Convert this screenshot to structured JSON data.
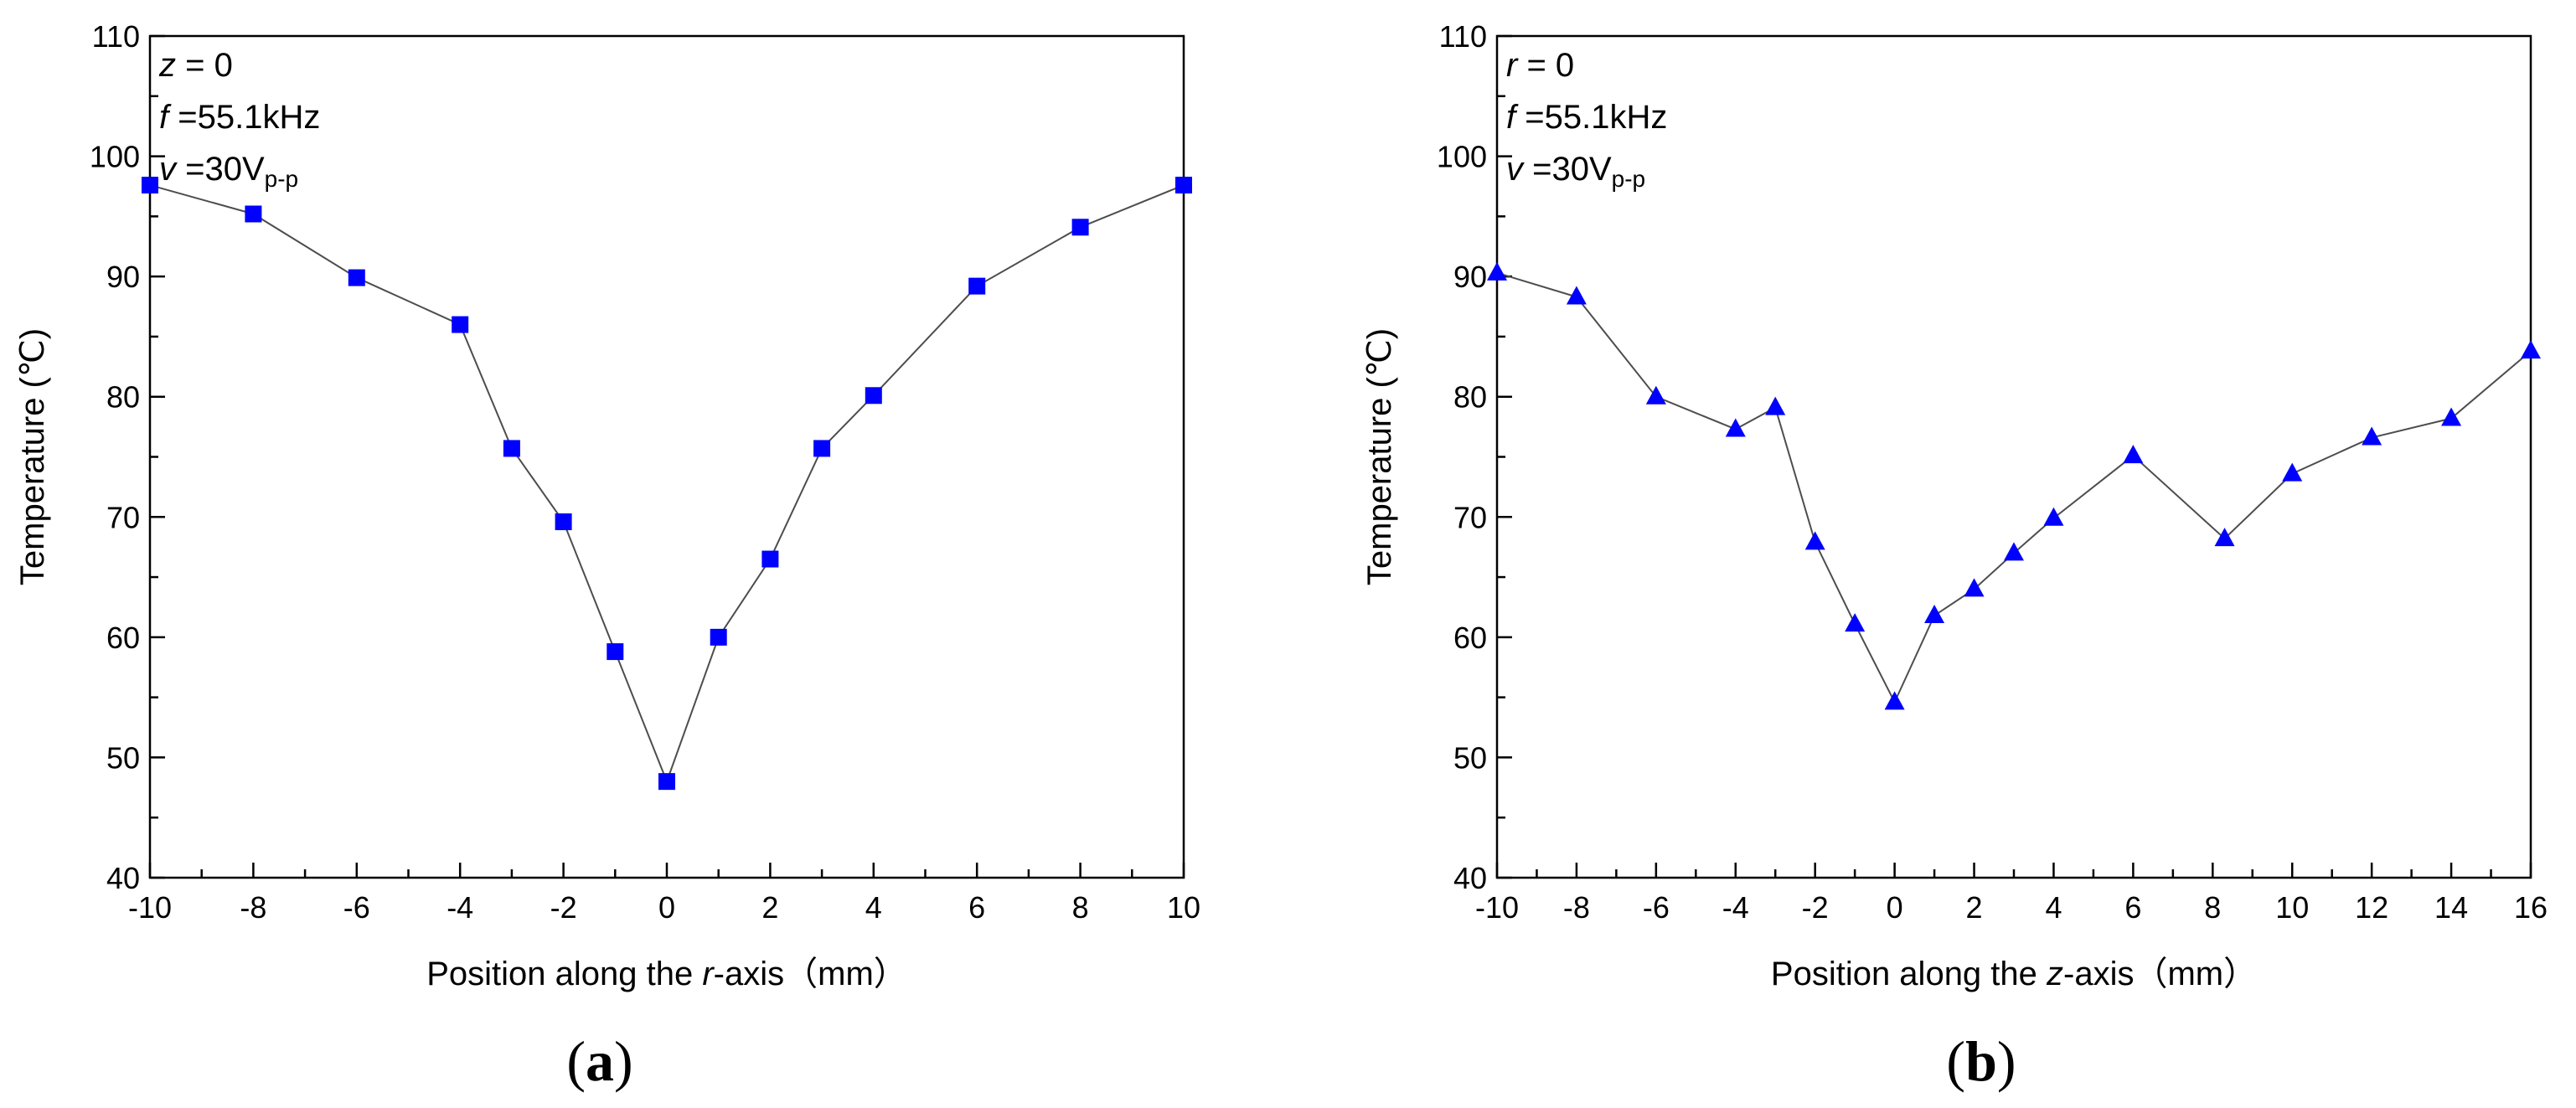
{
  "colors": {
    "marker": "#0000ff",
    "line": "#4d4d4d",
    "axis": "#000000"
  },
  "chart_data": [
    {
      "type": "line",
      "panel_label": "(a)",
      "panel_label_bold": "a",
      "title": "",
      "xlabel_prefix": "Position along the ",
      "xlabel_var": "r",
      "xlabel_suffix": "-axis（mm）",
      "ylabel": "Temperature (℃)",
      "xlim": [
        -10,
        10
      ],
      "ylim": [
        40,
        110
      ],
      "xticks": [
        -10,
        -8,
        -6,
        -4,
        -2,
        0,
        2,
        4,
        6,
        8,
        10
      ],
      "yticks": [
        40,
        50,
        60,
        70,
        80,
        90,
        100,
        110
      ],
      "annotations": [
        {
          "var": "z",
          "text": " = 0"
        },
        {
          "var": "f",
          "text": " =55.1kHz"
        },
        {
          "var": "v",
          "text": " =30V",
          "sub": "p-p"
        }
      ],
      "marker": "square",
      "series": [
        {
          "name": "Temperature",
          "x": [
            -10,
            -8,
            -6,
            -4,
            -3,
            -2,
            -1,
            0,
            1,
            2,
            3,
            4,
            6,
            8,
            10
          ],
          "y": [
            97.6,
            95.2,
            89.9,
            86.0,
            75.7,
            69.6,
            58.8,
            48.0,
            60.0,
            66.5,
            75.7,
            80.1,
            89.2,
            94.1,
            97.6
          ]
        }
      ]
    },
    {
      "type": "line",
      "panel_label": "(b)",
      "panel_label_bold": "b",
      "title": "",
      "xlabel_prefix": "Position along the ",
      "xlabel_var": "z",
      "xlabel_suffix": "-axis（mm）",
      "ylabel": "Temperature (℃)",
      "xlim": [
        -10,
        16
      ],
      "ylim": [
        40,
        110
      ],
      "xticks": [
        -10,
        -8,
        -6,
        -4,
        -2,
        0,
        2,
        4,
        6,
        8,
        10,
        12,
        14,
        16
      ],
      "yticks": [
        40,
        50,
        60,
        70,
        80,
        90,
        100,
        110
      ],
      "annotations": [
        {
          "var": "r",
          "text": " = 0"
        },
        {
          "var": "f",
          "text": " =55.1kHz"
        },
        {
          "var": "v",
          "text": " =30V",
          "sub": "p-p"
        }
      ],
      "marker": "triangle",
      "series": [
        {
          "name": "Temperature",
          "x": [
            -10,
            -8,
            -6,
            -4,
            -3,
            -2,
            -1,
            0,
            1,
            2,
            3,
            4,
            6,
            8.3,
            10,
            12,
            14,
            16
          ],
          "y": [
            90.3,
            88.3,
            80.0,
            77.3,
            79.1,
            67.9,
            61.1,
            54.6,
            61.8,
            64.0,
            67.0,
            69.9,
            75.1,
            68.2,
            73.6,
            76.6,
            78.2,
            83.8
          ]
        }
      ]
    }
  ]
}
